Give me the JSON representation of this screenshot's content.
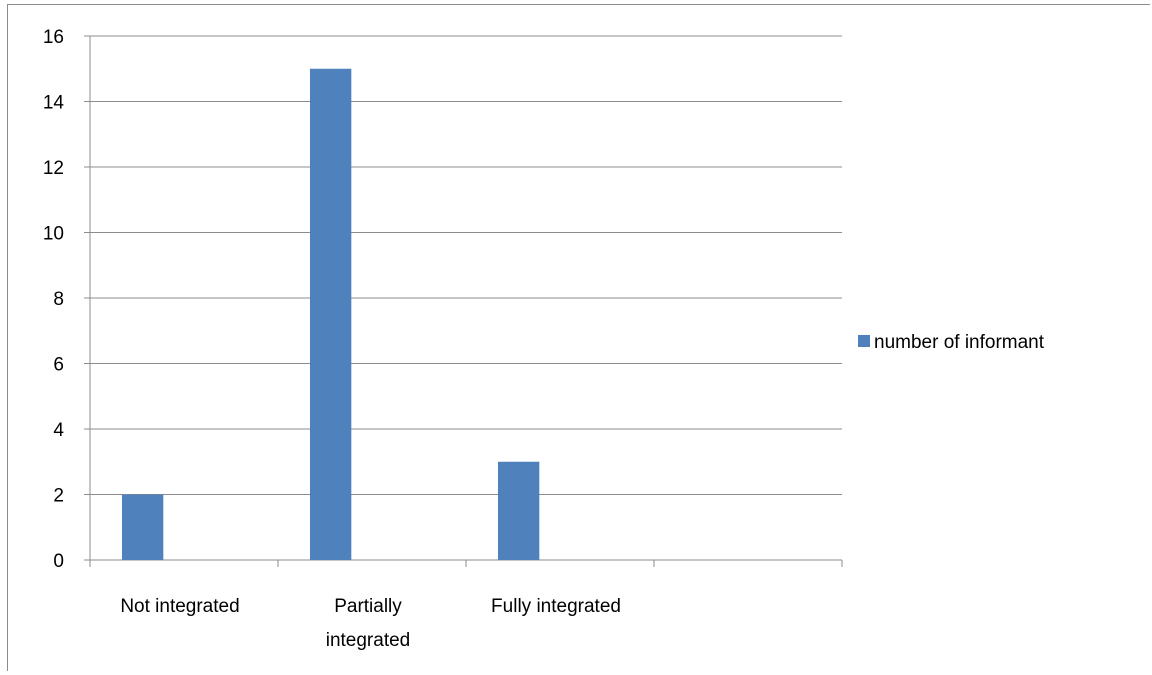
{
  "chart_data": {
    "type": "bar",
    "categories": [
      "Not integrated",
      "Partially integrated",
      "Fully integrated",
      ""
    ],
    "category_lines": [
      [
        "Not integrated"
      ],
      [
        "Partially",
        "integrated"
      ],
      [
        "Fully integrated"
      ],
      []
    ],
    "series": [
      {
        "name": "number of informant",
        "values": [
          2,
          15,
          3,
          null
        ],
        "color": "#4f81bd"
      }
    ],
    "ylim": [
      0,
      16
    ],
    "yticks": [
      0,
      2,
      4,
      6,
      8,
      10,
      12,
      14,
      16
    ],
    "grid": true,
    "legend_position": "right",
    "xlabel": "",
    "ylabel": "",
    "title": ""
  }
}
